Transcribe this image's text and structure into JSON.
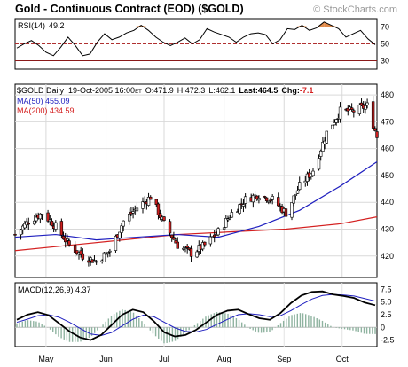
{
  "header": {
    "title": "Gold - Continuous Contract (EOD) ($GOLD)",
    "watermark": "© StockCharts.com"
  },
  "rsi_panel": {
    "label": "RSI(14)",
    "value": "49.2",
    "levels": [
      "70",
      "50",
      "30"
    ]
  },
  "price_panel": {
    "info": {
      "symbol": "$GOLD Daily",
      "date": "19-Oct-2005 16:00",
      "tz": "ET",
      "open": "O:471.9",
      "high": "H:472.3",
      "low": "L:462.1",
      "last": "Last:464.5",
      "chg_label": "Chg:",
      "chg_value": "-7.1"
    },
    "ma50_label": "MA(50) 455.09",
    "ma200_label": "MA(200) 434.59"
  },
  "macd_panel": {
    "label": "MACD(12,26,9) 4.37"
  },
  "chart_data": [
    {
      "type": "line",
      "name": "RSI",
      "title": "RSI(14) 49.2",
      "x_range": [
        "2005-04-15",
        "2005-10-19"
      ],
      "ylim": [
        20,
        80
      ],
      "yticks": [
        30,
        50,
        70
      ],
      "guide_lines": [
        30,
        50,
        70
      ],
      "values": [
        45,
        50,
        54,
        48,
        40,
        36,
        46,
        58,
        48,
        36,
        38,
        52,
        62,
        55,
        58,
        63,
        66,
        72,
        66,
        58,
        52,
        48,
        52,
        57,
        50,
        55,
        68,
        64,
        61,
        58,
        52,
        58,
        62,
        63,
        61,
        50,
        55,
        68,
        67,
        72,
        66,
        69,
        76,
        72,
        68,
        58,
        62,
        66,
        56,
        49
      ]
    },
    {
      "type": "line",
      "title": "$GOLD Daily",
      "x_labels": [
        "May",
        "Jun",
        "Jul",
        "Aug",
        "Sep",
        "Oct"
      ],
      "x_label_dates": [
        "2005-05-01",
        "2005-06-01",
        "2005-07-01",
        "2005-08-01",
        "2005-09-01",
        "2005-10-01"
      ],
      "x_range": [
        "2005-04-15",
        "2005-10-19"
      ],
      "ylim": [
        412,
        484
      ],
      "yticks": [
        420,
        430,
        440,
        450,
        460,
        470,
        480
      ],
      "grid": true,
      "series": [
        {
          "name": "$GOLD Daily",
          "color": "#000000",
          "dates": [
            "2005-04-15",
            "2005-04-22",
            "2005-04-29",
            "2005-05-06",
            "2005-05-13",
            "2005-05-20",
            "2005-05-27",
            "2005-06-03",
            "2005-06-10",
            "2005-06-17",
            "2005-06-24",
            "2005-07-01",
            "2005-07-08",
            "2005-07-15",
            "2005-07-22",
            "2005-07-29",
            "2005-08-05",
            "2005-08-12",
            "2005-08-19",
            "2005-08-26",
            "2005-09-02",
            "2005-09-09",
            "2005-09-16",
            "2005-09-23",
            "2005-09-30",
            "2005-10-07",
            "2005-10-14",
            "2005-10-19"
          ],
          "values": [
            428,
            433,
            436,
            431,
            424,
            420,
            418,
            422,
            433,
            438,
            442,
            432,
            424,
            421,
            424,
            429,
            436,
            441,
            443,
            441,
            436,
            446,
            452,
            466,
            474,
            474,
            476,
            464.5
          ]
        },
        {
          "name": "MA(50) 455.09",
          "color": "#1f1fbf",
          "dates": [
            "2005-04-15",
            "2005-05-06",
            "2005-05-27",
            "2005-06-17",
            "2005-07-08",
            "2005-07-29",
            "2005-08-19",
            "2005-09-09",
            "2005-09-30",
            "2005-10-19"
          ],
          "values": [
            427,
            428,
            426,
            427,
            428,
            427,
            431,
            437,
            446,
            455.09
          ]
        },
        {
          "name": "MA(200) 434.59",
          "color": "#d42020",
          "dates": [
            "2005-04-15",
            "2005-05-13",
            "2005-06-10",
            "2005-07-08",
            "2005-08-05",
            "2005-09-02",
            "2005-09-30",
            "2005-10-19"
          ],
          "values": [
            422,
            424,
            426,
            428,
            429,
            430,
            432,
            434.59
          ]
        }
      ]
    },
    {
      "type": "line",
      "title": "MACD(12,26,9) 4.37",
      "x_range": [
        "2005-04-15",
        "2005-10-19"
      ],
      "ylim": [
        -3.8,
        8.8
      ],
      "yticks": [
        -2.5,
        0,
        2.5,
        5.0,
        7.5
      ],
      "ytick_labels": [
        "-2.5",
        "0",
        "2.5",
        "5.0",
        "7.5"
      ],
      "series": [
        {
          "name": "MACD",
          "color": "#000000",
          "values": [
            1.5,
            2.5,
            3.0,
            2.4,
            0.8,
            -0.8,
            -2.0,
            -2.5,
            -1.5,
            0.5,
            2.5,
            3.5,
            3.0,
            1.2,
            -1.0,
            -1.8,
            -1.5,
            -0.5,
            1.0,
            2.5,
            3.3,
            3.5,
            2.6,
            1.8,
            1.5,
            2.8,
            4.8,
            6.3,
            7.0,
            7.1,
            6.5,
            6.2,
            5.8,
            4.9,
            4.37
          ]
        },
        {
          "name": "Signal",
          "color": "#1f1fbf",
          "values": [
            1.0,
            1.6,
            2.3,
            2.5,
            2.0,
            1.0,
            -0.2,
            -1.3,
            -1.6,
            -1.0,
            0.3,
            1.6,
            2.4,
            2.1,
            1.0,
            -0.1,
            -0.8,
            -0.9,
            -0.4,
            0.6,
            1.6,
            2.5,
            2.7,
            2.5,
            2.1,
            2.3,
            3.3,
            4.5,
            5.6,
            6.3,
            6.5,
            6.4,
            6.2,
            5.7,
            5.2
          ]
        }
      ]
    }
  ]
}
